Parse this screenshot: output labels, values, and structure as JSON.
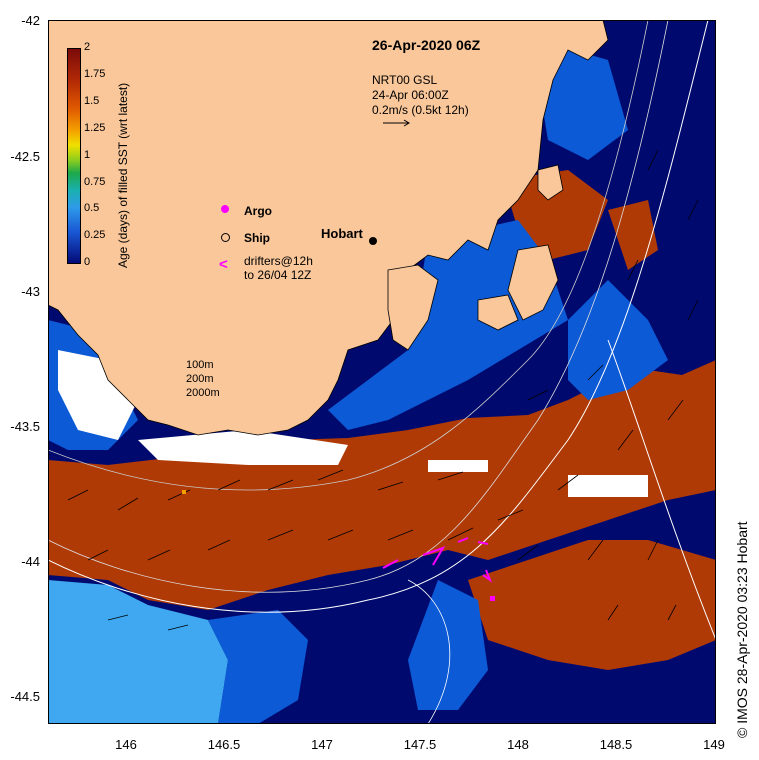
{
  "map": {
    "title": "26-Apr-2020 06Z",
    "info_lines": [
      "NRT00 GSL",
      "24-Apr 06:00Z",
      "0.2m/s (0.5kt 12h)"
    ],
    "place_label": "Hobart",
    "credit": "© IMOS 28-Apr-2020 03:23 Hobart",
    "y_axis_labels": [
      "-42",
      "-42.5",
      "-43",
      "-43.5",
      "-44",
      "-44.5"
    ],
    "x_axis_labels": [
      "146",
      "146.5",
      "147",
      "147.5",
      "148",
      "148.5",
      "149"
    ],
    "colorbar": {
      "title": "Age (days) of filled SST (wrt latest)",
      "ticks": [
        "2",
        "1.75",
        "1.5",
        "1.25",
        "1",
        "0.75",
        "0.5",
        "0.25",
        "0"
      ]
    },
    "legend": {
      "argo": "Argo",
      "ship": "Ship",
      "drifter_symbol": "<",
      "drifter_line1": "drifters@12h",
      "drifter_line2": "to 26/04 12Z"
    },
    "depth_contours": [
      "100m",
      "200m",
      "2000m"
    ],
    "colors": {
      "land": "#f9c79a",
      "dark_navy": "#000a6e",
      "mid_blue": "#0c5ad6",
      "light_blue": "#3fa8f0",
      "rust": "#b03a06",
      "drifter": "#ff00ff"
    }
  }
}
